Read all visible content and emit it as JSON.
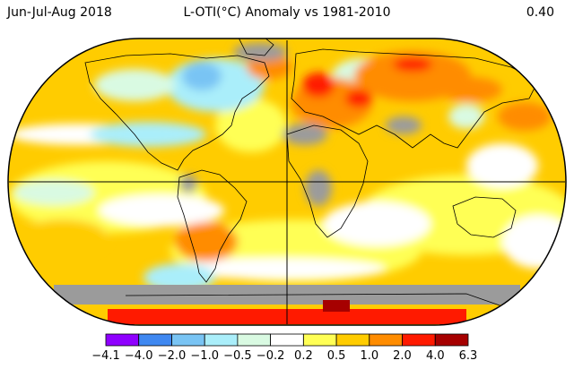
{
  "header": {
    "period": "Jun-Jul-Aug 2018",
    "title": "L-OTI(°C) Anomaly vs 1981-2010",
    "global_mean": "0.40"
  },
  "legend": {
    "ticks": [
      "−4.1",
      "−4.0",
      "−2.0",
      "−1.0",
      "−0.5",
      "−0.2",
      "0.2",
      "0.5",
      "1.0",
      "2.0",
      "4.0",
      "6.3"
    ],
    "colors": [
      "#8f00ff",
      "#3f88f1",
      "#79c4f4",
      "#aaeefa",
      "#d9fae2",
      "#ffffff",
      "#ffff55",
      "#ffcc00",
      "#ff8c00",
      "#ff1a00",
      "#a60000"
    ],
    "undefined_color": "#9b9b9b"
  },
  "map": {
    "projection": "Robinson",
    "center_longitude": 0
  }
}
